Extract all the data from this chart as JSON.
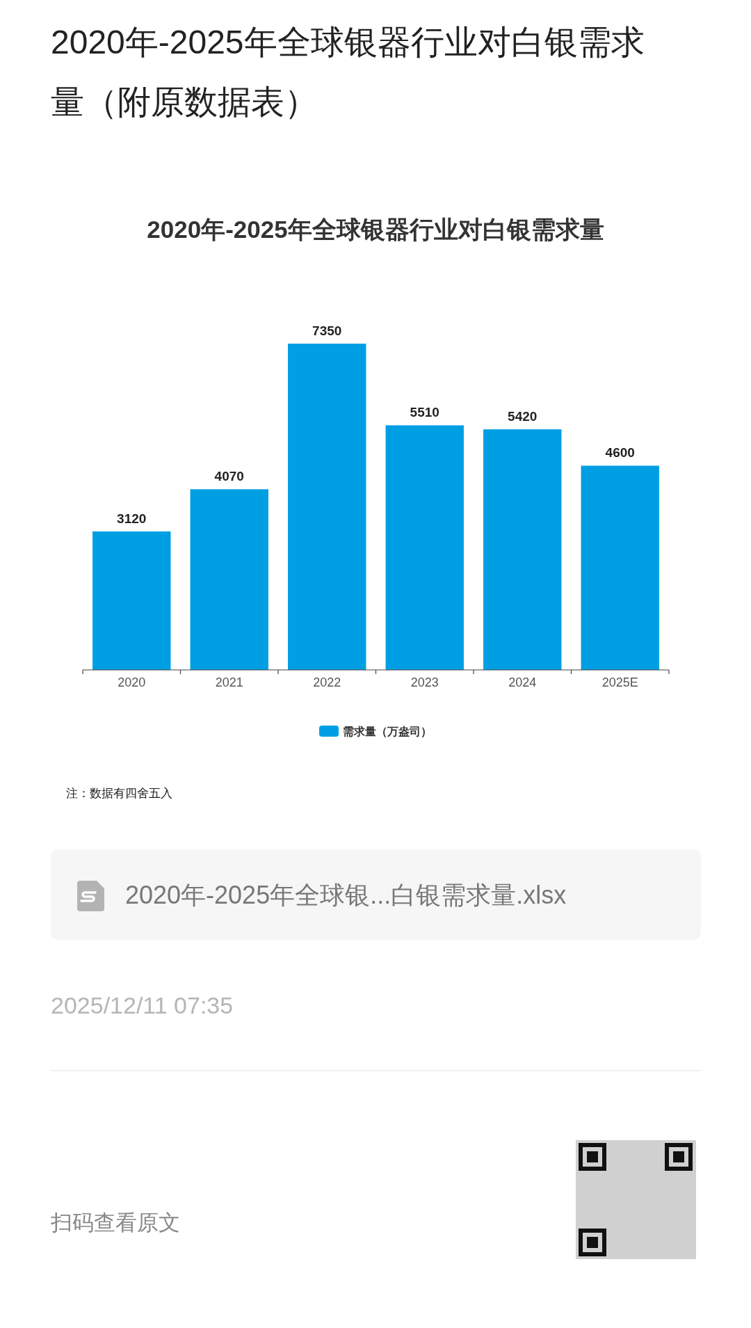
{
  "chart_data": {
    "type": "bar",
    "title": "2020年-2025年全球银器行业对白银需求量（附原数据表）",
    "subtitle": "2020年-2025年全球银器行业对白银需求量",
    "categories": [
      "2020",
      "2021",
      "2022",
      "2023",
      "2024",
      "2025E"
    ],
    "series": [
      {
        "name": "需求量（万盎司）",
        "color": "#009fe3",
        "values": [
          3120,
          4070,
          7350,
          5510,
          5420,
          4600
        ]
      }
    ],
    "data_labels": true,
    "legend": "bottom",
    "annotations": [
      "注：数据有四舍五入",
      "2020年-2025年全球银...白银需求量.xlsx",
      "2025/12/11 07:35",
      "扫码查看原文"
    ]
  }
}
